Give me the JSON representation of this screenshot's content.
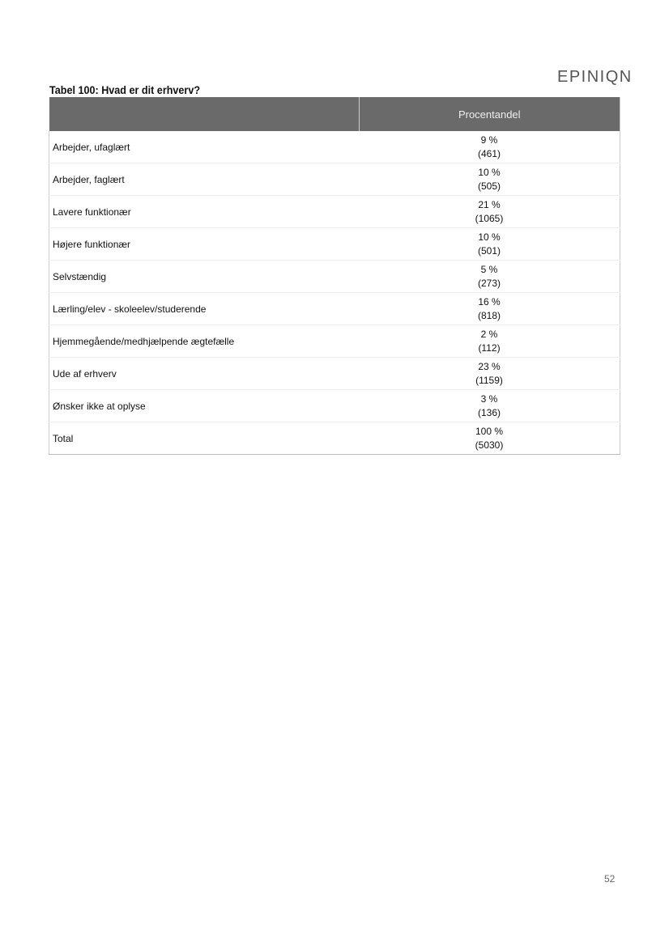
{
  "logo": "EPINIQN",
  "title": "Tabel 100: Hvad er dit erhverv?",
  "table": {
    "headers": [
      "",
      "Procentandel"
    ],
    "rows": [
      {
        "label": "Arbejder, ufaglært",
        "pct": "9 %",
        "n": "(461)"
      },
      {
        "label": "Arbejder, faglært",
        "pct": "10 %",
        "n": "(505)"
      },
      {
        "label": "Lavere funktionær",
        "pct": "21 %",
        "n": "(1065)"
      },
      {
        "label": "Højere funktionær",
        "pct": "10 %",
        "n": "(501)"
      },
      {
        "label": "Selvstændig",
        "pct": "5 %",
        "n": "(273)"
      },
      {
        "label": "Lærling/elev - skoleelev/studerende",
        "pct": "16 %",
        "n": "(818)"
      },
      {
        "label": "Hjemmegående/medhjælpende ægtefælle",
        "pct": "2 %",
        "n": "(112)"
      },
      {
        "label": "Ude af erhverv",
        "pct": "23 %",
        "n": "(1159)"
      },
      {
        "label": "Ønsker ikke at oplyse",
        "pct": "3 %",
        "n": "(136)"
      },
      {
        "label": "Total",
        "pct": "100 %",
        "n": "(5030)"
      }
    ]
  },
  "page_number": "52"
}
